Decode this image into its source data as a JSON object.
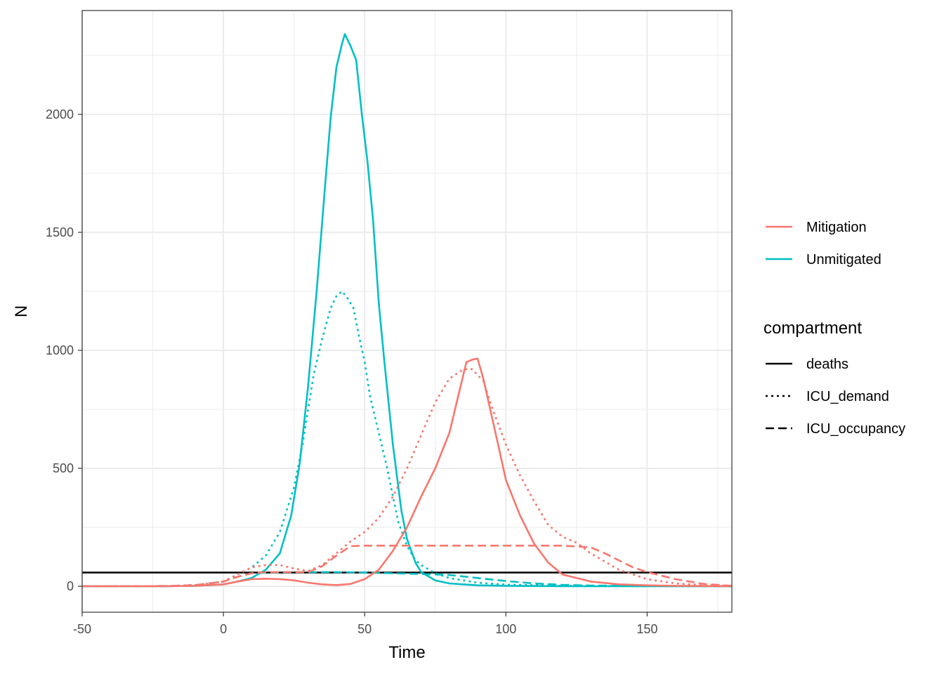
{
  "chart_data": {
    "type": "line",
    "xlabel": "Time",
    "ylabel": "N",
    "xlim": [
      -50,
      180
    ],
    "ylim": [
      -110,
      2440
    ],
    "x_ticks": [
      -50,
      0,
      50,
      100,
      150
    ],
    "x_tick_labels": [
      "-50",
      "0",
      "50",
      "100",
      "150"
    ],
    "y_ticks": [
      0,
      500,
      1000,
      1500,
      2000
    ],
    "y_tick_labels": [
      "0",
      "500",
      "1000",
      "1500",
      "2000"
    ],
    "grid": true,
    "legend_position": "right",
    "colors": {
      "Mitigation": "#F8766D",
      "Unmitigated": "#00BFC4",
      "deaths": "#000000"
    },
    "color_legend": {
      "title": "",
      "entries": [
        "Mitigation",
        "Unmitigated"
      ]
    },
    "linetype_legend": {
      "title": "compartment",
      "entries": [
        "deaths",
        "ICU_demand",
        "ICU_occupancy"
      ]
    },
    "series": [
      {
        "name": "deaths",
        "scenario": "",
        "compartment": "deaths",
        "color": "#000000",
        "dash": "solid",
        "x": [
          -50,
          180
        ],
        "y": [
          58,
          58
        ]
      },
      {
        "name": "Unmitigated ICU_demand",
        "scenario": "Unmitigated",
        "compartment": "ICU_demand",
        "color": "#00BFC4",
        "dash": "dotted",
        "x": [
          -50,
          -20,
          -10,
          0,
          5,
          10,
          15,
          20,
          25,
          28,
          30,
          32,
          35,
          38,
          40,
          42,
          44,
          46,
          48,
          50,
          52,
          55,
          58,
          60,
          62,
          65,
          68,
          70,
          75,
          80,
          90,
          100,
          120,
          150,
          180
        ],
        "y": [
          0,
          1,
          5,
          20,
          50,
          80,
          130,
          230,
          420,
          600,
          750,
          900,
          1050,
          1180,
          1230,
          1250,
          1220,
          1180,
          1060,
          950,
          800,
          650,
          500,
          380,
          270,
          170,
          110,
          90,
          55,
          35,
          15,
          7,
          2,
          0,
          0
        ]
      },
      {
        "name": "Unmitigated ICU_occupancy",
        "scenario": "Unmitigated",
        "compartment": "ICU_occupancy",
        "color": "#00BFC4",
        "dash": "dashed",
        "x": [
          -50,
          -20,
          -10,
          0,
          5,
          10,
          20,
          30,
          40,
          50,
          60,
          70,
          80,
          90,
          100,
          110,
          120,
          130,
          150,
          180
        ],
        "y": [
          0,
          1,
          5,
          20,
          40,
          55,
          60,
          60,
          60,
          58,
          55,
          52,
          48,
          35,
          22,
          12,
          6,
          3,
          1,
          0
        ]
      },
      {
        "name": "Unmitigated deaths",
        "scenario": "Unmitigated",
        "compartment": "deaths",
        "color": "#00BFC4",
        "dash": "solid",
        "x": [
          -50,
          -20,
          -10,
          0,
          5,
          10,
          15,
          20,
          24,
          27,
          30,
          33,
          36,
          38,
          40,
          42,
          43,
          45,
          47,
          49,
          51,
          53,
          55,
          57,
          60,
          63,
          65,
          68,
          70,
          75,
          80,
          90,
          100,
          120,
          150,
          180
        ],
        "y": [
          0,
          0,
          2,
          8,
          20,
          35,
          70,
          140,
          300,
          520,
          850,
          1250,
          1700,
          1990,
          2200,
          2300,
          2340,
          2290,
          2230,
          2000,
          1800,
          1550,
          1200,
          950,
          600,
          320,
          200,
          100,
          60,
          25,
          12,
          4,
          2,
          0,
          0,
          0
        ]
      },
      {
        "name": "Mitigation ICU_demand",
        "scenario": "Mitigation",
        "compartment": "ICU_demand",
        "color": "#F8766D",
        "dash": "dotted",
        "x": [
          -50,
          -20,
          -10,
          0,
          5,
          10,
          15,
          20,
          25,
          30,
          35,
          40,
          45,
          50,
          55,
          60,
          65,
          70,
          75,
          80,
          85,
          88,
          92,
          95,
          100,
          105,
          110,
          115,
          120,
          125,
          130,
          140,
          150,
          160,
          170,
          180
        ],
        "y": [
          0,
          1,
          5,
          20,
          50,
          80,
          90,
          90,
          75,
          65,
          90,
          140,
          190,
          230,
          290,
          380,
          500,
          640,
          780,
          880,
          920,
          920,
          870,
          760,
          600,
          470,
          360,
          260,
          210,
          185,
          140,
          70,
          30,
          12,
          5,
          2
        ]
      },
      {
        "name": "Mitigation ICU_occupancy",
        "scenario": "Mitigation",
        "compartment": "ICU_occupancy",
        "color": "#F8766D",
        "dash": "dashed",
        "x": [
          -50,
          -20,
          -10,
          0,
          5,
          10,
          15,
          20,
          25,
          30,
          35,
          40,
          45,
          50,
          60,
          70,
          80,
          90,
          100,
          110,
          120,
          130,
          135,
          140,
          145,
          150,
          160,
          170,
          180
        ],
        "y": [
          0,
          1,
          5,
          20,
          40,
          55,
          60,
          60,
          60,
          60,
          85,
          130,
          170,
          172,
          172,
          172,
          172,
          172,
          172,
          172,
          172,
          165,
          140,
          110,
          80,
          60,
          30,
          10,
          2
        ]
      },
      {
        "name": "Mitigation deaths",
        "scenario": "Mitigation",
        "compartment": "deaths",
        "color": "#F8766D",
        "dash": "solid",
        "x": [
          -50,
          -20,
          -10,
          0,
          5,
          10,
          15,
          20,
          25,
          30,
          35,
          40,
          45,
          50,
          55,
          60,
          65,
          70,
          75,
          80,
          83,
          86,
          88,
          90,
          92,
          95,
          98,
          100,
          105,
          110,
          115,
          120,
          130,
          140,
          150,
          160,
          170,
          180
        ],
        "y": [
          0,
          0,
          2,
          8,
          20,
          30,
          32,
          30,
          25,
          15,
          8,
          5,
          10,
          30,
          70,
          150,
          250,
          380,
          500,
          650,
          800,
          950,
          960,
          965,
          880,
          720,
          560,
          450,
          300,
          180,
          100,
          50,
          20,
          8,
          4,
          2,
          1,
          0
        ]
      }
    ]
  }
}
